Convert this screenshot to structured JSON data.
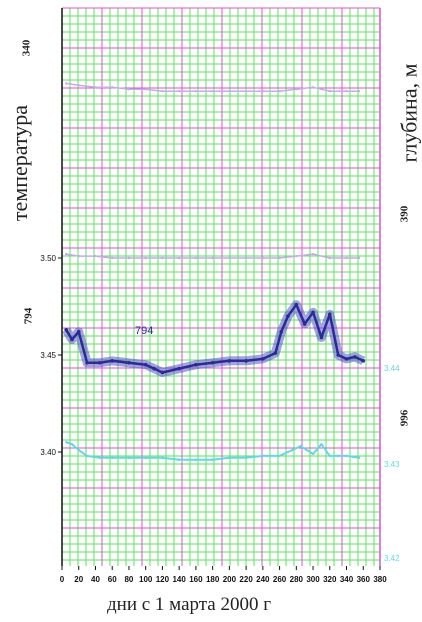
{
  "labels": {
    "left_title": "температура",
    "right_title": "глубина, м",
    "x_title": "дни с 1 марта 2000 г",
    "left_top_tick": "340",
    "left_series_label": "794",
    "right_mid_tick": "390",
    "right_series_label": "996",
    "inline_series_label": "794"
  },
  "colors": {
    "grid_minor": "#5ee05e",
    "grid_major": "#e050d0",
    "series_dark": "#2a2a9a",
    "series_dark_fill": "#5858c8",
    "series_cyan": "#60d8e8",
    "series_lilac": "#c8a8f0",
    "axis": "#111111"
  },
  "chart_data": {
    "type": "line",
    "xlabel": "дни с 1 марта 2000 г",
    "ylabel": "температура",
    "ylabel_right": "глубина, м",
    "xlim": [
      0,
      380
    ],
    "x_ticks": [
      0,
      20,
      40,
      60,
      80,
      100,
      120,
      140,
      160,
      180,
      200,
      220,
      240,
      260,
      280,
      300,
      320,
      340,
      360,
      380
    ],
    "x_tick_labels": [
      "0",
      "20",
      "40",
      "60",
      "80",
      "100",
      "120",
      "140",
      "160",
      "180",
      "200",
      "220",
      "240",
      "260",
      "280",
      "300",
      "320",
      "340",
      "360",
      "380"
    ],
    "left_ticks": [
      {
        "value": 3.5,
        "label": "3.50"
      },
      {
        "value": 3.45,
        "label": "3.45"
      },
      {
        "value": 3.4,
        "label": "3.40"
      }
    ],
    "right_ticks": [
      {
        "value": 3.44,
        "label": "3.44"
      },
      {
        "value": 3.43,
        "label": "3.43"
      },
      {
        "value": 3.42,
        "label": "3.42"
      }
    ],
    "series": [
      {
        "name": "794",
        "color": "#2a2a9a",
        "x": [
          5,
          12,
          20,
          30,
          45,
          60,
          80,
          100,
          110,
          120,
          140,
          160,
          180,
          200,
          220,
          240,
          255,
          262,
          270,
          280,
          290,
          300,
          310,
          320,
          330,
          340,
          350,
          360
        ],
        "y": [
          3.463,
          3.458,
          3.462,
          3.446,
          3.446,
          3.447,
          3.446,
          3.445,
          3.443,
          3.441,
          3.443,
          3.445,
          3.446,
          3.447,
          3.447,
          3.448,
          3.451,
          3.462,
          3.47,
          3.476,
          3.466,
          3.472,
          3.459,
          3.471,
          3.45,
          3.448,
          3.449,
          3.447
        ]
      },
      {
        "name": "996",
        "color": "#60d8e8",
        "x": [
          5,
          12,
          20,
          30,
          45,
          60,
          80,
          100,
          120,
          140,
          160,
          180,
          200,
          220,
          240,
          260,
          275,
          285,
          300,
          310,
          320,
          330,
          340,
          355
        ],
        "y": [
          3.405,
          3.404,
          3.401,
          3.398,
          3.397,
          3.397,
          3.397,
          3.397,
          3.397,
          3.396,
          3.396,
          3.396,
          3.397,
          3.397,
          3.398,
          3.398,
          3.401,
          3.403,
          3.399,
          3.404,
          3.398,
          3.398,
          3.398,
          3.397
        ]
      },
      {
        "name": "",
        "color": "#c8a8f0",
        "x": [
          5,
          20,
          40,
          60,
          80,
          100,
          120,
          140,
          160,
          180,
          200,
          220,
          240,
          260,
          280,
          300,
          320,
          340,
          355
        ],
        "y": [
          3.59,
          3.589,
          3.588,
          3.588,
          3.587,
          3.587,
          3.586,
          3.586,
          3.586,
          3.586,
          3.586,
          3.586,
          3.586,
          3.586,
          3.587,
          3.588,
          3.586,
          3.586,
          3.586
        ]
      },
      {
        "name": "",
        "color": "#c8a8f0",
        "x": [
          5,
          20,
          40,
          60,
          80,
          100,
          120,
          140,
          160,
          180,
          200,
          220,
          240,
          260,
          280,
          300,
          320,
          340,
          355
        ],
        "y": [
          3.502,
          3.501,
          3.501,
          3.5,
          3.5,
          3.5,
          3.5,
          3.5,
          3.5,
          3.5,
          3.5,
          3.5,
          3.5,
          3.5,
          3.501,
          3.502,
          3.5,
          3.5,
          3.5
        ]
      }
    ],
    "grid": true
  }
}
